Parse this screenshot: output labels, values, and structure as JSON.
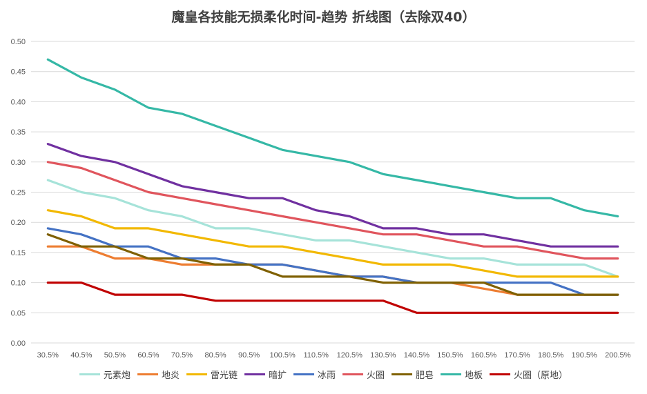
{
  "chart_data": {
    "type": "line",
    "title": "魔皇各技能无损柔化时间-趋势 折线图（去除双40）",
    "xlabel": "",
    "ylabel": "",
    "ylim": [
      0,
      0.5
    ],
    "ytick_labels": [
      "0.00",
      "0.05",
      "0.10",
      "0.15",
      "0.20",
      "0.25",
      "0.30",
      "0.35",
      "0.40",
      "0.45",
      "0.50"
    ],
    "categories": [
      "30.5%",
      "40.5%",
      "50.5%",
      "60.5%",
      "70.5%",
      "80.5%",
      "90.5%",
      "100.5%",
      "110.5%",
      "120.5%",
      "130.5%",
      "140.5%",
      "150.5%",
      "160.5%",
      "170.5%",
      "180.5%",
      "190.5%",
      "200.5%"
    ],
    "grid": true,
    "legend_position": "bottom",
    "series": [
      {
        "name": "元素炮",
        "color": "#a6e3d9",
        "values": [
          0.27,
          0.25,
          0.24,
          0.22,
          0.21,
          0.19,
          0.19,
          0.18,
          0.17,
          0.17,
          0.16,
          0.15,
          0.14,
          0.14,
          0.13,
          0.13,
          0.13,
          0.11
        ]
      },
      {
        "name": "地炎",
        "color": "#ed7d31",
        "values": [
          0.16,
          0.16,
          0.14,
          0.14,
          0.13,
          0.13,
          0.13,
          0.13,
          0.12,
          0.11,
          0.11,
          0.1,
          0.1,
          0.09,
          0.08,
          0.08,
          0.08,
          0.08
        ]
      },
      {
        "name": "雷光链",
        "color": "#f2b800",
        "values": [
          0.22,
          0.21,
          0.19,
          0.19,
          0.18,
          0.17,
          0.16,
          0.16,
          0.15,
          0.14,
          0.13,
          0.13,
          0.13,
          0.12,
          0.11,
          0.11,
          0.11,
          0.11
        ]
      },
      {
        "name": "暗扩",
        "color": "#7030a0",
        "values": [
          0.33,
          0.31,
          0.3,
          0.28,
          0.26,
          0.25,
          0.24,
          0.24,
          0.22,
          0.21,
          0.19,
          0.19,
          0.18,
          0.18,
          0.17,
          0.16,
          0.16,
          0.16
        ]
      },
      {
        "name": "冰雨",
        "color": "#4472c4",
        "values": [
          0.19,
          0.18,
          0.16,
          0.16,
          0.14,
          0.14,
          0.13,
          0.13,
          0.12,
          0.11,
          0.11,
          0.1,
          0.1,
          0.1,
          0.1,
          0.1,
          0.08,
          0.08
        ]
      },
      {
        "name": "火圈",
        "color": "#e0555d",
        "values": [
          0.3,
          0.29,
          0.27,
          0.25,
          0.24,
          0.23,
          0.22,
          0.21,
          0.2,
          0.19,
          0.18,
          0.18,
          0.17,
          0.16,
          0.16,
          0.15,
          0.14,
          0.14
        ]
      },
      {
        "name": "肥皂",
        "color": "#7f6000",
        "values": [
          0.18,
          0.16,
          0.16,
          0.14,
          0.14,
          0.13,
          0.13,
          0.11,
          0.11,
          0.11,
          0.1,
          0.1,
          0.1,
          0.1,
          0.08,
          0.08,
          0.08,
          0.08
        ]
      },
      {
        "name": "地板",
        "color": "#35b8a6",
        "values": [
          0.47,
          0.44,
          0.42,
          0.39,
          0.38,
          0.36,
          0.34,
          0.32,
          0.31,
          0.3,
          0.28,
          0.27,
          0.26,
          0.25,
          0.24,
          0.24,
          0.22,
          0.21
        ]
      },
      {
        "name": "火圈（原地）",
        "color": "#c00000",
        "values": [
          0.1,
          0.1,
          0.08,
          0.08,
          0.08,
          0.07,
          0.07,
          0.07,
          0.07,
          0.07,
          0.07,
          0.05,
          0.05,
          0.05,
          0.05,
          0.05,
          0.05,
          0.05
        ]
      }
    ]
  }
}
